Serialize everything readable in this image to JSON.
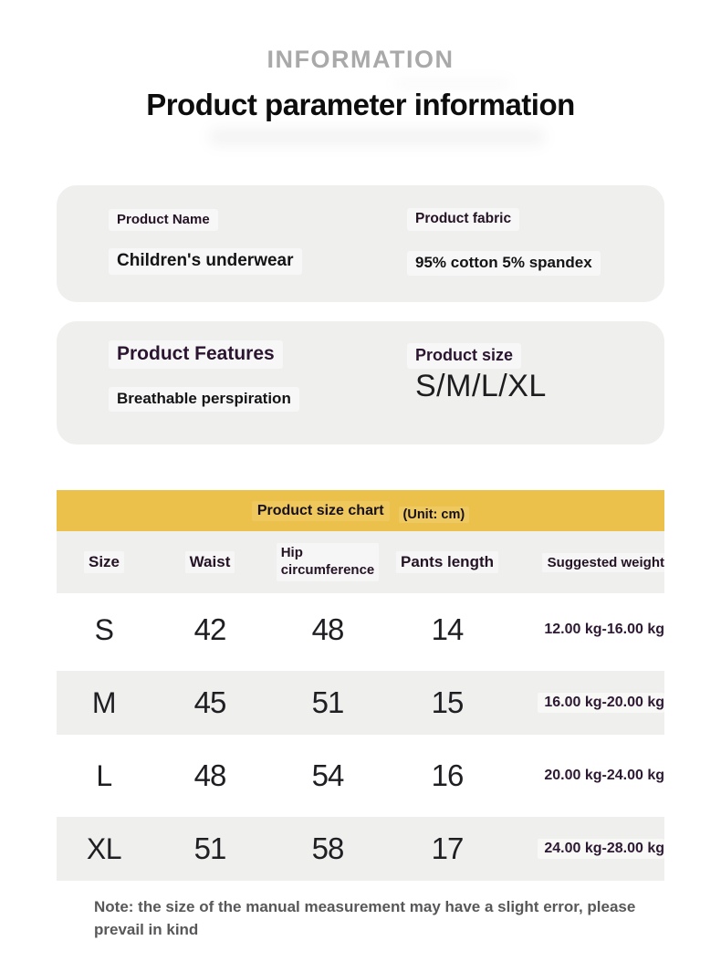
{
  "header": {
    "eyebrow": "INFORMATION",
    "title": "Product parameter information"
  },
  "cards": [
    {
      "fields": [
        {
          "label": "Product Name",
          "value": "Children's underwear"
        },
        {
          "label": "Product fabric",
          "value": "95% cotton 5% spandex"
        }
      ]
    },
    {
      "fields": [
        {
          "label": "Product Features",
          "value": "Breathable perspiration"
        },
        {
          "label": "Product size",
          "value": "S/M/L/XL"
        }
      ]
    }
  ],
  "size_chart": {
    "title": "Product size chart",
    "unit_label": "(Unit: cm)",
    "columns": [
      "Size",
      "Waist",
      "Hip circumference",
      "Pants length",
      "Suggested weight"
    ],
    "rows": [
      {
        "size": "S",
        "waist": "42",
        "hip": "48",
        "pants_length": "14",
        "suggested_weight": "12.00 kg-16.00 kg"
      },
      {
        "size": "M",
        "waist": "45",
        "hip": "51",
        "pants_length": "15",
        "suggested_weight": "16.00 kg-20.00 kg"
      },
      {
        "size": "L",
        "waist": "48",
        "hip": "54",
        "pants_length": "16",
        "suggested_weight": "20.00 kg-24.00 kg"
      },
      {
        "size": "XL",
        "waist": "51",
        "hip": "58",
        "pants_length": "17",
        "suggested_weight": "24.00 kg-28.00 kg"
      }
    ]
  },
  "note": {
    "text": "Note: the size of the manual measurement may have a slight error, please prevail in kind"
  },
  "colors": {
    "accent_yellow": "#ecc14b",
    "card_bg": "#efefee",
    "alt_row_bg": "#efefee",
    "eyebrow_gray": "#a9a9a9",
    "title_black": "#0d0d0d",
    "label_dark_purple": "#2b1530",
    "weight_text": "#2e1933",
    "note_gray": "#58585a"
  }
}
